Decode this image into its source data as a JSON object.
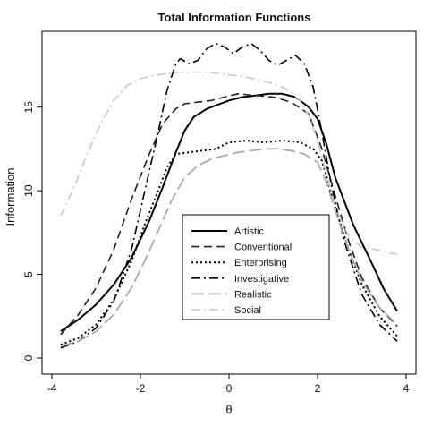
{
  "chart_data": {
    "type": "line",
    "title": "Total Information Functions",
    "xlabel": "θ",
    "ylabel": "Information",
    "xlim": [
      -4,
      4
    ],
    "ylim": [
      0,
      19
    ],
    "xticks": [
      -4,
      -2,
      0,
      2,
      4
    ],
    "yticks": [
      0,
      5,
      10,
      15
    ],
    "grid": false,
    "legend": "center",
    "series": [
      {
        "name": "Artistic",
        "style": "solid",
        "color": "#000000",
        "x": [
          -3.8,
          -3.4,
          -3.0,
          -2.6,
          -2.2,
          -1.8,
          -1.5,
          -1.2,
          -1.0,
          -0.8,
          -0.5,
          -0.2,
          0.0,
          0.3,
          0.6,
          0.9,
          1.2,
          1.5,
          1.8,
          2.0,
          2.2,
          2.4,
          2.8,
          3.2,
          3.5,
          3.8
        ],
        "y": [
          1.6,
          2.3,
          3.2,
          4.4,
          6.0,
          8.2,
          10.2,
          12.3,
          13.6,
          14.4,
          14.9,
          15.2,
          15.4,
          15.6,
          15.7,
          15.8,
          15.8,
          15.6,
          15.0,
          14.3,
          12.8,
          10.8,
          8.0,
          5.8,
          4.1,
          2.8
        ]
      },
      {
        "name": "Conventional",
        "style": "dashed",
        "color": "#222222",
        "x": [
          -3.8,
          -3.4,
          -3.0,
          -2.6,
          -2.2,
          -1.8,
          -1.5,
          -1.2,
          -1.0,
          -0.7,
          -0.4,
          -0.1,
          0.2,
          0.6,
          1.0,
          1.4,
          1.8,
          2.1,
          2.4,
          2.7,
          3.0,
          3.4,
          3.8
        ],
        "y": [
          1.4,
          2.6,
          4.2,
          6.5,
          9.5,
          12.2,
          14.0,
          14.9,
          15.2,
          15.3,
          15.4,
          15.6,
          15.8,
          15.7,
          15.6,
          15.3,
          14.6,
          12.5,
          9.7,
          7.0,
          4.8,
          3.0,
          1.9
        ]
      },
      {
        "name": "Enterprising",
        "style": "dotted",
        "color": "#000000",
        "x": [
          -3.8,
          -3.4,
          -3.0,
          -2.6,
          -2.2,
          -1.9,
          -1.6,
          -1.4,
          -1.2,
          -0.9,
          -0.6,
          -0.3,
          0.0,
          0.4,
          0.8,
          1.2,
          1.6,
          1.9,
          2.1,
          2.4,
          2.7,
          3.0,
          3.4,
          3.8
        ],
        "y": [
          0.8,
          1.2,
          2.0,
          3.5,
          5.8,
          8.0,
          10.0,
          11.4,
          12.2,
          12.3,
          12.4,
          12.5,
          12.9,
          13.0,
          12.9,
          13.0,
          12.9,
          12.5,
          11.8,
          9.0,
          6.5,
          4.4,
          2.5,
          1.3
        ]
      },
      {
        "name": "Investigative",
        "style": "dashdot",
        "color": "#000000",
        "x": [
          -3.8,
          -3.4,
          -3.0,
          -2.6,
          -2.2,
          -1.9,
          -1.6,
          -1.4,
          -1.2,
          -1.1,
          -0.9,
          -0.7,
          -0.5,
          -0.3,
          -0.1,
          0.1,
          0.3,
          0.5,
          0.7,
          0.9,
          1.1,
          1.3,
          1.5,
          1.7,
          1.9,
          2.1,
          2.3,
          2.6,
          3.0,
          3.4,
          3.8
        ],
        "y": [
          0.6,
          1.0,
          1.8,
          3.4,
          6.5,
          10.0,
          13.5,
          16.0,
          17.6,
          17.9,
          17.6,
          17.8,
          18.5,
          18.8,
          18.6,
          18.2,
          18.6,
          18.8,
          18.4,
          17.8,
          17.5,
          17.8,
          18.1,
          17.6,
          16.2,
          13.5,
          10.5,
          7.0,
          3.8,
          2.0,
          1.0
        ]
      },
      {
        "name": "Realistic",
        "style": "longdash",
        "color": "#aaaaaa",
        "x": [
          -3.8,
          -3.4,
          -3.0,
          -2.6,
          -2.2,
          -1.9,
          -1.6,
          -1.3,
          -1.0,
          -0.7,
          -0.4,
          -0.1,
          0.2,
          0.5,
          0.8,
          1.1,
          1.4,
          1.7,
          2.0,
          2.2,
          2.4,
          2.7,
          3.0,
          3.4,
          3.8
        ],
        "y": [
          0.7,
          1.0,
          1.6,
          2.6,
          4.2,
          5.8,
          7.6,
          9.4,
          10.8,
          11.5,
          11.9,
          12.1,
          12.3,
          12.4,
          12.5,
          12.5,
          12.4,
          12.2,
          11.7,
          10.5,
          8.8,
          6.5,
          4.6,
          3.0,
          2.0
        ]
      },
      {
        "name": "Social",
        "style": "dashdot",
        "color": "#c8c8c8",
        "x": [
          -3.8,
          -3.5,
          -3.2,
          -2.9,
          -2.6,
          -2.3,
          -2.0,
          -1.7,
          -1.4,
          -1.1,
          -0.8,
          -0.5,
          -0.2,
          0.1,
          0.4,
          0.7,
          1.0,
          1.2,
          1.4,
          1.6,
          1.8,
          2.0,
          2.2,
          2.4,
          2.7,
          3.0,
          3.3,
          3.6,
          3.8
        ],
        "y": [
          8.5,
          10.2,
          12.2,
          14.0,
          15.4,
          16.3,
          16.7,
          16.9,
          17.0,
          17.1,
          17.1,
          17.1,
          17.0,
          16.9,
          16.8,
          16.6,
          16.4,
          16.2,
          15.9,
          15.4,
          14.5,
          13.0,
          11.0,
          9.0,
          7.3,
          6.6,
          6.5,
          6.3,
          6.2
        ]
      }
    ]
  }
}
